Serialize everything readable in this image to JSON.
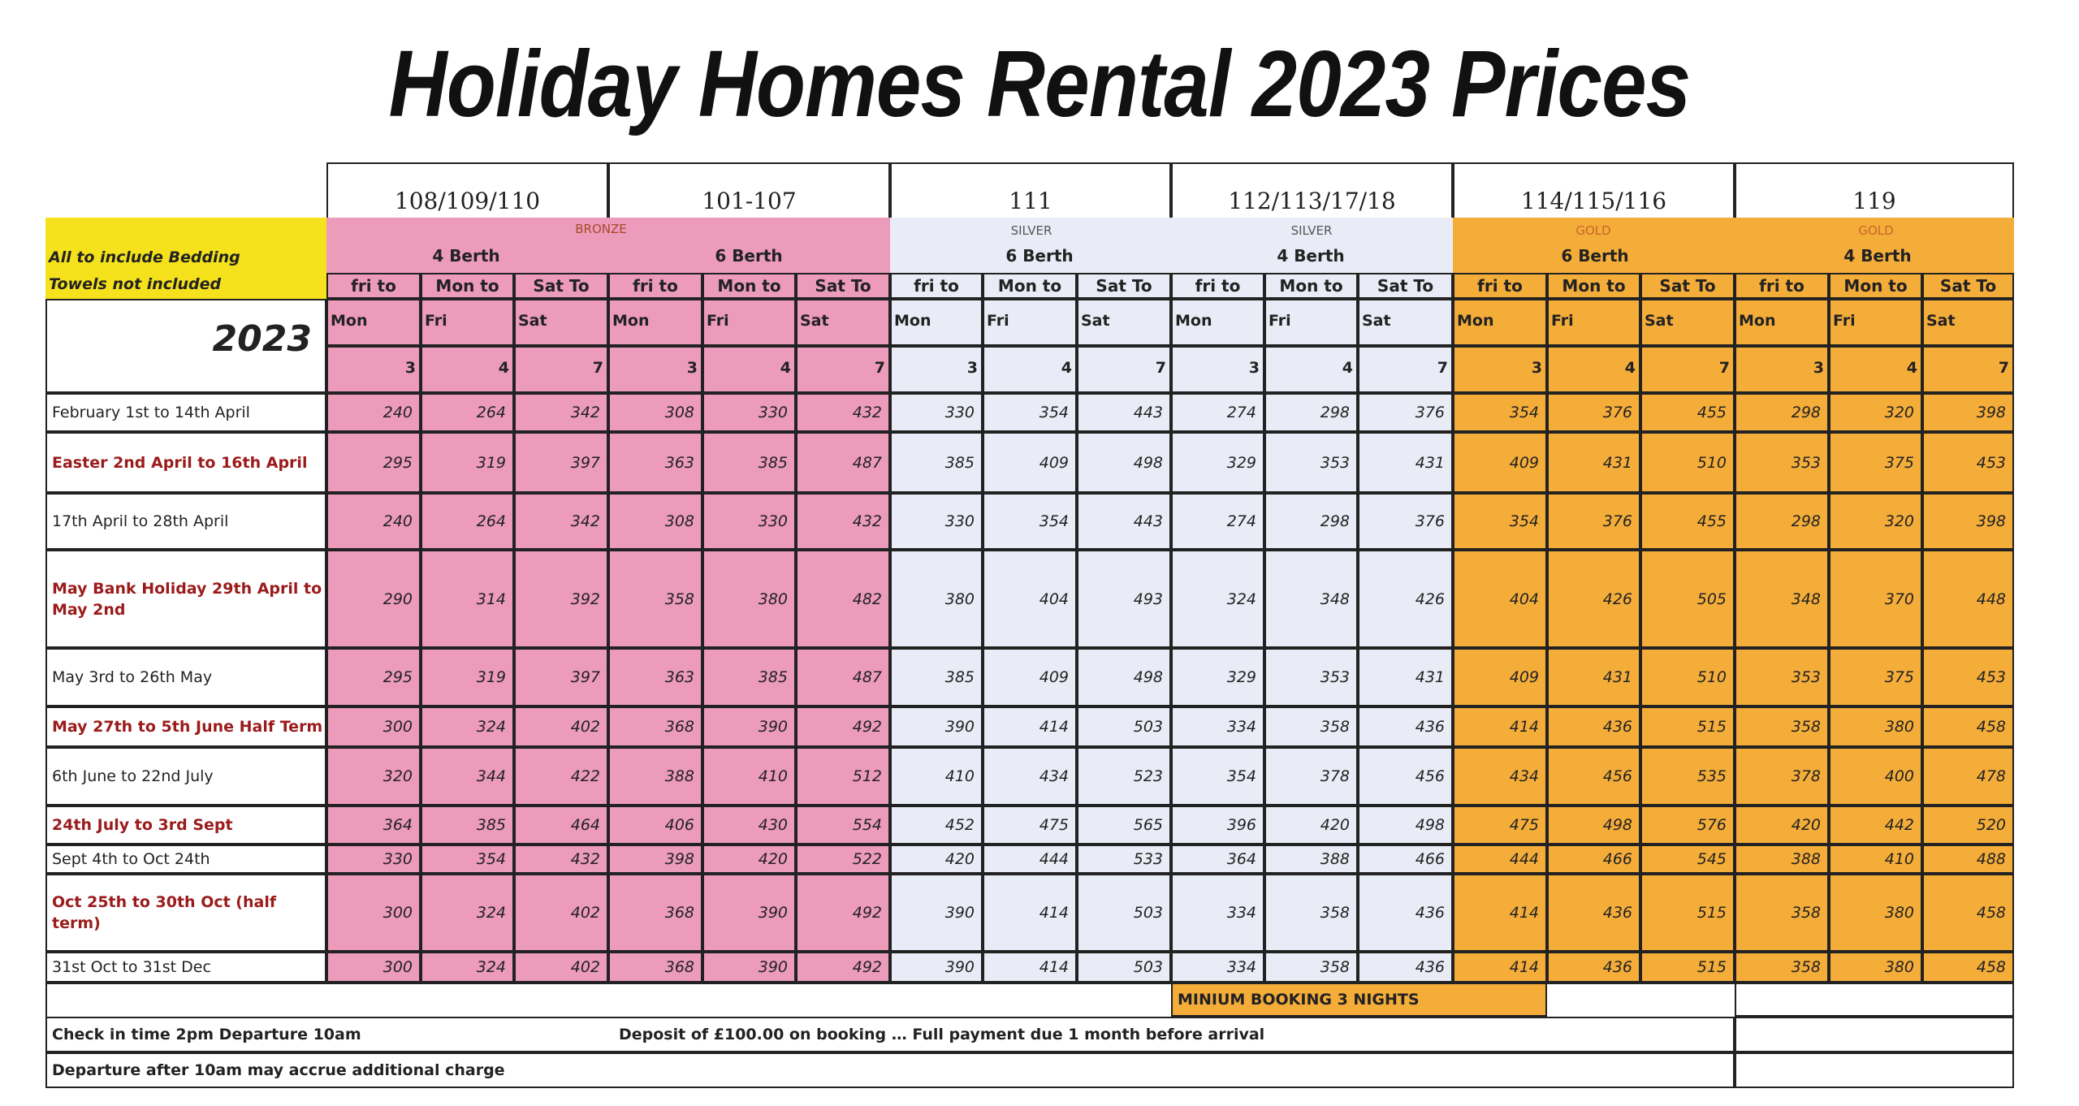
{
  "title": "Holiday Homes Rental 2023 Prices",
  "units": [
    "108/109/110",
    "101-107",
    "111",
    "112/113/17/18",
    "114/115/116",
    "119"
  ],
  "tiers": {
    "bronze": "BRONZE",
    "silver1": "SILVER",
    "silver2": "SILVER",
    "gold1": "GOLD",
    "gold2": "GOLD"
  },
  "berths": [
    "4 Berth",
    "6 Berth",
    "6 Berth",
    "4 Berth",
    "6 Berth",
    "4 Berth"
  ],
  "notes": {
    "bedding": "All to include Bedding",
    "towels": "Towels not included"
  },
  "year": "2023",
  "col_headers": [
    "fri to",
    "Mon to",
    "Sat To"
  ],
  "col_days": [
    "Mon",
    "Fri",
    "Sat"
  ],
  "col_nights": [
    "3",
    "4",
    "7"
  ],
  "rows": [
    {
      "label": "February 1st  to 14th April",
      "highlight": false,
      "prices": [
        "240",
        "264",
        "342",
        "308",
        "330",
        "432",
        "330",
        "354",
        "443",
        "274",
        "298",
        "376",
        "354",
        "376",
        "455",
        "298",
        "320",
        "398"
      ]
    },
    {
      "label": "Easter 2nd  April to 16th April",
      "highlight": true,
      "prices": [
        "295",
        "319",
        "397",
        "363",
        "385",
        "487",
        "385",
        "409",
        "498",
        "329",
        "353",
        "431",
        "409",
        "431",
        "510",
        "353",
        "375",
        "453"
      ]
    },
    {
      "label": "17th   April to 28th April",
      "highlight": false,
      "prices": [
        "240",
        "264",
        "342",
        "308",
        "330",
        "432",
        "330",
        "354",
        "443",
        "274",
        "298",
        "376",
        "354",
        "376",
        "455",
        "298",
        "320",
        "398"
      ]
    },
    {
      "label": "May Bank Holiday 29th April  to May 2nd",
      "highlight": true,
      "prices": [
        "290",
        "314",
        "392",
        "358",
        "380",
        "482",
        "380",
        "404",
        "493",
        "324",
        "348",
        "426",
        "404",
        "426",
        "505",
        "348",
        "370",
        "448"
      ]
    },
    {
      "label": "May 3rd to 26th May",
      "highlight": false,
      "prices": [
        "295",
        "319",
        "397",
        "363",
        "385",
        "487",
        "385",
        "409",
        "498",
        "329",
        "353",
        "431",
        "409",
        "431",
        "510",
        "353",
        "375",
        "453"
      ]
    },
    {
      "label": "May 27th to 5th June Half Term",
      "highlight": true,
      "prices": [
        "300",
        "324",
        "402",
        "368",
        "390",
        "492",
        "390",
        "414",
        "503",
        "334",
        "358",
        "436",
        "414",
        "436",
        "515",
        "358",
        "380",
        "458"
      ]
    },
    {
      "label": "6th June to 22nd July",
      "highlight": false,
      "prices": [
        "320",
        "344",
        "422",
        "388",
        "410",
        "512",
        "410",
        "434",
        "523",
        "354",
        "378",
        "456",
        "434",
        "456",
        "535",
        "378",
        "400",
        "478"
      ]
    },
    {
      "label": "24th   July to 3rd  Sept",
      "highlight": true,
      "prices": [
        "364",
        "385",
        "464",
        "406",
        "430",
        "554",
        "452",
        "475",
        "565",
        "396",
        "420",
        "498",
        "475",
        "498",
        "576",
        "420",
        "442",
        "520"
      ]
    },
    {
      "label": "Sept 4th  to Oct 24th",
      "highlight": false,
      "prices": [
        "330",
        "354",
        "432",
        "398",
        "420",
        "522",
        "420",
        "444",
        "533",
        "364",
        "388",
        "466",
        "444",
        "466",
        "545",
        "388",
        "410",
        "488"
      ]
    },
    {
      "label": "Oct 25th to 30th Oct  (half term)",
      "highlight": true,
      "prices": [
        "300",
        "324",
        "402",
        "368",
        "390",
        "492",
        "390",
        "414",
        "503",
        "334",
        "358",
        "436",
        "414",
        "436",
        "515",
        "358",
        "380",
        "458"
      ]
    },
    {
      "label": "31st Oct  to 31st Dec",
      "highlight": false,
      "prices": [
        "300",
        "324",
        "402",
        "368",
        "390",
        "492",
        "390",
        "414",
        "503",
        "334",
        "358",
        "436",
        "414",
        "436",
        "515",
        "358",
        "380",
        "458"
      ]
    }
  ],
  "footer": {
    "min_booking": "MINIUM BOOKING 3 NIGHTS",
    "checkin": "Check in time 2pm   Departure 10am",
    "deposit": "Deposit of £100.00 on booking … Full payment due 1 month before arrival",
    "late": "Departure after 10am may accrue additional charge"
  },
  "colors": {
    "bronze": "#ec9bbb",
    "silver": "#e9ecf6",
    "gold": "#f5ad3a",
    "yellow": "#f5e21c",
    "highlight_text": "#9b1b1b"
  }
}
